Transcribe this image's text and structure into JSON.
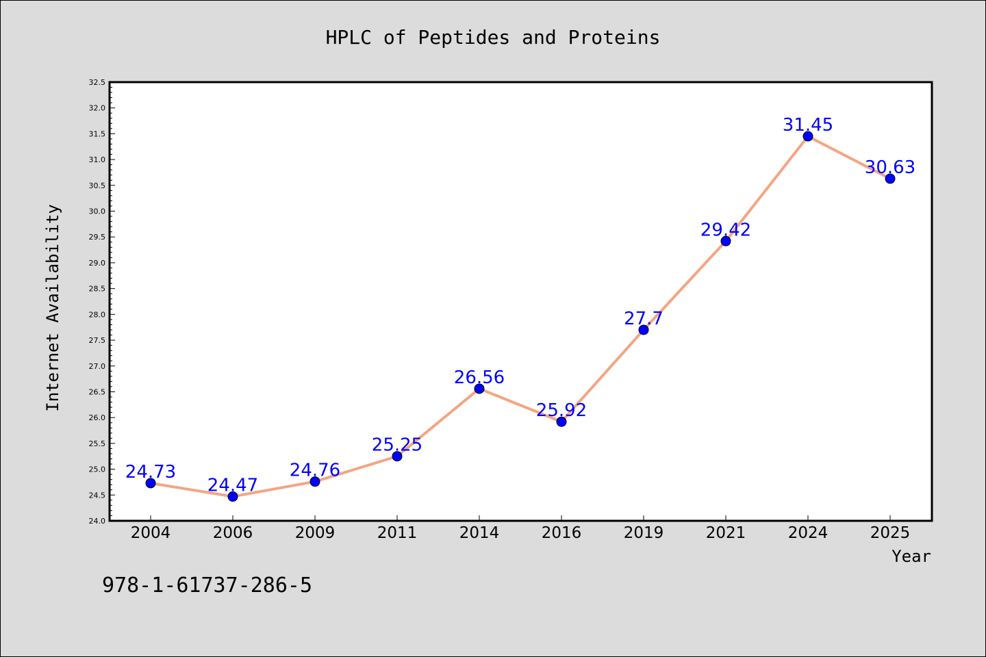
{
  "chart_data": {
    "type": "line",
    "title": "HPLC of Peptides and Proteins",
    "xlabel": "Year",
    "ylabel": "Internet Availability",
    "categories": [
      "2004",
      "2006",
      "2009",
      "2011",
      "2014",
      "2016",
      "2019",
      "2021",
      "2024",
      "2025"
    ],
    "series": [
      {
        "values": [
          24.73,
          24.47,
          24.76,
          25.25,
          26.56,
          25.92,
          27.7,
          29.42,
          31.45,
          30.63
        ],
        "labels": [
          "24.73",
          "24.47",
          "24.76",
          "25.25",
          "26.56",
          "25.92",
          "27.7",
          "29.42",
          "31.45",
          "30.63"
        ]
      }
    ],
    "ylim": [
      24.0,
      32.5
    ],
    "yticks": [
      "24.0",
      "24.5",
      "25.0",
      "25.5",
      "26.0",
      "26.5",
      "27.0",
      "27.5",
      "28.0",
      "28.5",
      "29.0",
      "29.5",
      "30.0",
      "30.5",
      "31.0",
      "31.5",
      "32.0",
      "32.5"
    ],
    "grid": false,
    "legend": "none",
    "line_color": "#f4a582",
    "marker_color": "#0000ff",
    "label_color": "#0000ff"
  },
  "footnote": "978-1-61737-286-5"
}
